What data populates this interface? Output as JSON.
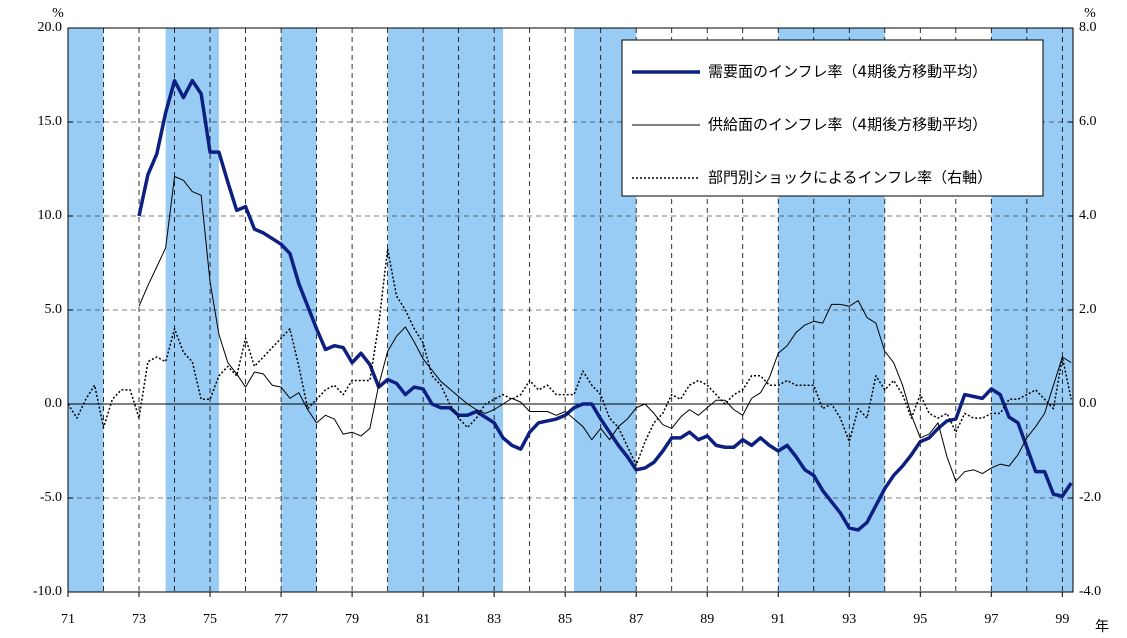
{
  "chart_data": {
    "type": "line",
    "y_unit": "%",
    "y2_unit": "%",
    "x_unit": "年",
    "xlim": [
      71,
      99.3
    ],
    "xticks": [
      71,
      73,
      75,
      77,
      79,
      81,
      83,
      85,
      87,
      89,
      91,
      93,
      95,
      97,
      99
    ],
    "xgrid": [
      72,
      73,
      74,
      75,
      76,
      77,
      78,
      79,
      80,
      81,
      82,
      83,
      84,
      85,
      86,
      87,
      88,
      89,
      90,
      91,
      92,
      93,
      94,
      95,
      96,
      97,
      98,
      99
    ],
    "ylim": [
      -10,
      20
    ],
    "yticks": [
      {
        "value": -10,
        "label": "-10.0"
      },
      {
        "value": -5,
        "label": "-5.0"
      },
      {
        "value": 0,
        "label": "0.0"
      },
      {
        "value": 5,
        "label": "5.0"
      },
      {
        "value": 10,
        "label": "10.0"
      },
      {
        "value": 15,
        "label": "15.0"
      },
      {
        "value": 20,
        "label": "20.0"
      }
    ],
    "y2lim": [
      -4,
      8
    ],
    "y2ticks": [
      {
        "value": -4,
        "label": "-4.0"
      },
      {
        "value": -2,
        "label": "-2.0"
      },
      {
        "value": 0,
        "label": "0.0"
      },
      {
        "value": 2,
        "label": "2.0"
      },
      {
        "value": 4,
        "label": "4.0"
      },
      {
        "value": 6,
        "label": "6.0"
      },
      {
        "value": 8,
        "label": "8.0"
      }
    ],
    "grid": true,
    "legend_position": "upper right",
    "shaded_ranges": [
      [
        71,
        72
      ],
      [
        73.75,
        75.25
      ],
      [
        77,
        78
      ],
      [
        80,
        83.25
      ],
      [
        85.25,
        87
      ],
      [
        91,
        94
      ],
      [
        97,
        99.3
      ]
    ],
    "shade_color": "#99ccf5",
    "x": [
      71,
      71.25,
      71.5,
      71.75,
      72,
      72.25,
      72.5,
      72.75,
      73,
      73.25,
      73.5,
      73.75,
      74,
      74.25,
      74.5,
      74.75,
      75,
      75.25,
      75.5,
      75.75,
      76,
      76.25,
      76.5,
      76.75,
      77,
      77.25,
      77.5,
      77.75,
      78,
      78.25,
      78.5,
      78.75,
      79,
      79.25,
      79.5,
      79.75,
      80,
      80.25,
      80.5,
      80.75,
      81,
      81.25,
      81.5,
      81.75,
      82,
      82.25,
      82.5,
      82.75,
      83,
      83.25,
      83.5,
      83.75,
      84,
      84.25,
      84.5,
      84.75,
      85,
      85.25,
      85.5,
      85.75,
      86,
      86.25,
      86.5,
      86.75,
      87,
      87.25,
      87.5,
      87.75,
      88,
      88.25,
      88.5,
      88.75,
      89,
      89.25,
      89.5,
      89.75,
      90,
      90.25,
      90.5,
      90.75,
      91,
      91.25,
      91.5,
      91.75,
      92,
      92.25,
      92.5,
      92.75,
      93,
      93.25,
      93.5,
      93.75,
      94,
      94.25,
      94.5,
      94.75,
      95,
      95.25,
      95.5,
      95.75,
      96,
      96.25,
      96.5,
      96.75,
      97,
      97.25,
      97.5,
      97.75,
      98,
      98.25,
      98.5,
      98.75,
      99,
      99.25
    ],
    "series": [
      {
        "name": "需要面のインフレ率（4期後方移動平均）",
        "color": "#0d1f80",
        "width": 3.5,
        "style": "solid",
        "values": [
          null,
          null,
          null,
          null,
          null,
          null,
          null,
          null,
          10.0,
          12.2,
          13.3,
          15.5,
          17.2,
          16.3,
          17.2,
          16.5,
          13.4,
          13.4,
          11.8,
          10.3,
          10.5,
          9.3,
          9.1,
          8.8,
          8.5,
          8.0,
          6.4,
          5.2,
          4.0,
          2.9,
          3.1,
          3.0,
          2.2,
          2.7,
          2.1,
          0.9,
          1.3,
          1.1,
          0.5,
          0.9,
          0.8,
          0.0,
          -0.2,
          -0.2,
          -0.6,
          -0.6,
          -0.4,
          -0.7,
          -1.0,
          -1.8,
          -2.2,
          -2.4,
          -1.5,
          -1.0,
          -0.9,
          -0.8,
          -0.6,
          -0.2,
          0.0,
          0.0,
          -0.8,
          -1.5,
          -2.2,
          -2.8,
          -3.5,
          -3.4,
          -3.1,
          -2.5,
          -1.8,
          -1.8,
          -1.5,
          -1.9,
          -1.7,
          -2.2,
          -2.3,
          -2.3,
          -1.9,
          -2.2,
          -1.8,
          -2.2,
          -2.5,
          -2.2,
          -2.8,
          -3.5,
          -3.8,
          -4.6,
          -5.2,
          -5.8,
          -6.6,
          -6.7,
          -6.3,
          -5.4,
          -4.5,
          -3.8,
          -3.3,
          -2.7,
          -2.0,
          -1.8,
          -1.3,
          -0.9,
          -0.8,
          0.5,
          0.4,
          0.3,
          0.8,
          0.5,
          -0.7,
          -1.0,
          -2.3,
          -3.6,
          -3.6,
          -4.8,
          -4.9,
          -4.2
        ]
      },
      {
        "name": "供給面のインフレ率（4期後方移動平均）",
        "color": "#000000",
        "width": 1,
        "style": "solid",
        "values": [
          null,
          null,
          null,
          null,
          null,
          null,
          null,
          null,
          5.2,
          6.3,
          7.3,
          8.3,
          12.1,
          11.9,
          11.3,
          11.1,
          6.5,
          3.7,
          2.2,
          1.6,
          0.9,
          1.7,
          1.6,
          1.0,
          0.9,
          0.3,
          0.6,
          -0.3,
          -1.0,
          -0.6,
          -0.8,
          -1.6,
          -1.5,
          -1.7,
          -1.3,
          1.0,
          2.8,
          3.6,
          4.1,
          3.3,
          2.4,
          1.8,
          1.2,
          0.8,
          0.4,
          0.0,
          -0.3,
          -0.5,
          -0.3,
          0.0,
          0.3,
          0.1,
          -0.4,
          -0.4,
          -0.4,
          -0.6,
          -0.4,
          -0.8,
          -1.2,
          -1.9,
          -1.3,
          -1.9,
          -1.2,
          -0.8,
          -0.2,
          0.0,
          -0.5,
          -1.1,
          -1.3,
          -0.7,
          -0.3,
          -0.6,
          -0.2,
          0.2,
          0.2,
          -0.3,
          -0.6,
          0.3,
          0.6,
          1.4,
          2.7,
          3.1,
          3.8,
          4.2,
          4.4,
          4.3,
          5.3,
          5.3,
          5.2,
          5.5,
          4.6,
          4.3,
          2.8,
          2.2,
          1.0,
          -0.6,
          -1.8,
          -1.6,
          -1.0,
          -2.8,
          -4.1,
          -3.6,
          -3.5,
          -3.7,
          -3.4,
          -3.2,
          -3.3,
          -2.7,
          -1.8,
          -1.2,
          -0.5,
          1.0,
          2.5,
          2.2
        ]
      },
      {
        "name": "部門別ショックによるインフレ率（右軸）",
        "color": "#000000",
        "width": 1.5,
        "style": "dotted",
        "axis": "y2",
        "values": [
          0.0,
          -0.3,
          0.1,
          0.4,
          -0.5,
          0.1,
          0.3,
          0.3,
          -0.3,
          0.9,
          1.0,
          0.9,
          1.6,
          1.1,
          0.9,
          0.1,
          0.1,
          0.6,
          0.8,
          0.6,
          1.4,
          0.8,
          1.0,
          1.2,
          1.4,
          1.6,
          0.8,
          -0.1,
          0.1,
          0.3,
          0.4,
          0.2,
          0.5,
          0.5,
          0.5,
          1.7,
          3.3,
          2.3,
          2.0,
          1.6,
          1.3,
          0.6,
          0.4,
          0.0,
          -0.3,
          -0.5,
          -0.3,
          0.0,
          0.1,
          0.2,
          0.1,
          0.2,
          0.5,
          0.3,
          0.4,
          0.2,
          0.2,
          0.2,
          0.7,
          0.4,
          0.2,
          -0.3,
          -0.5,
          -0.9,
          -1.3,
          -0.8,
          -0.4,
          -0.2,
          0.2,
          0.1,
          0.4,
          0.5,
          0.4,
          0.2,
          0.0,
          0.2,
          0.3,
          0.6,
          0.6,
          0.4,
          0.4,
          0.5,
          0.4,
          0.4,
          0.4,
          -0.1,
          0.0,
          -0.3,
          -0.8,
          -0.1,
          -0.3,
          0.6,
          0.3,
          0.5,
          0.2,
          -0.3,
          0.2,
          -0.2,
          -0.3,
          -0.2,
          -0.6,
          -0.2,
          -0.3,
          -0.3,
          -0.2,
          -0.2,
          0.1,
          0.1,
          0.2,
          0.3,
          0.1,
          -0.1,
          1.0,
          0.1
        ]
      }
    ]
  }
}
